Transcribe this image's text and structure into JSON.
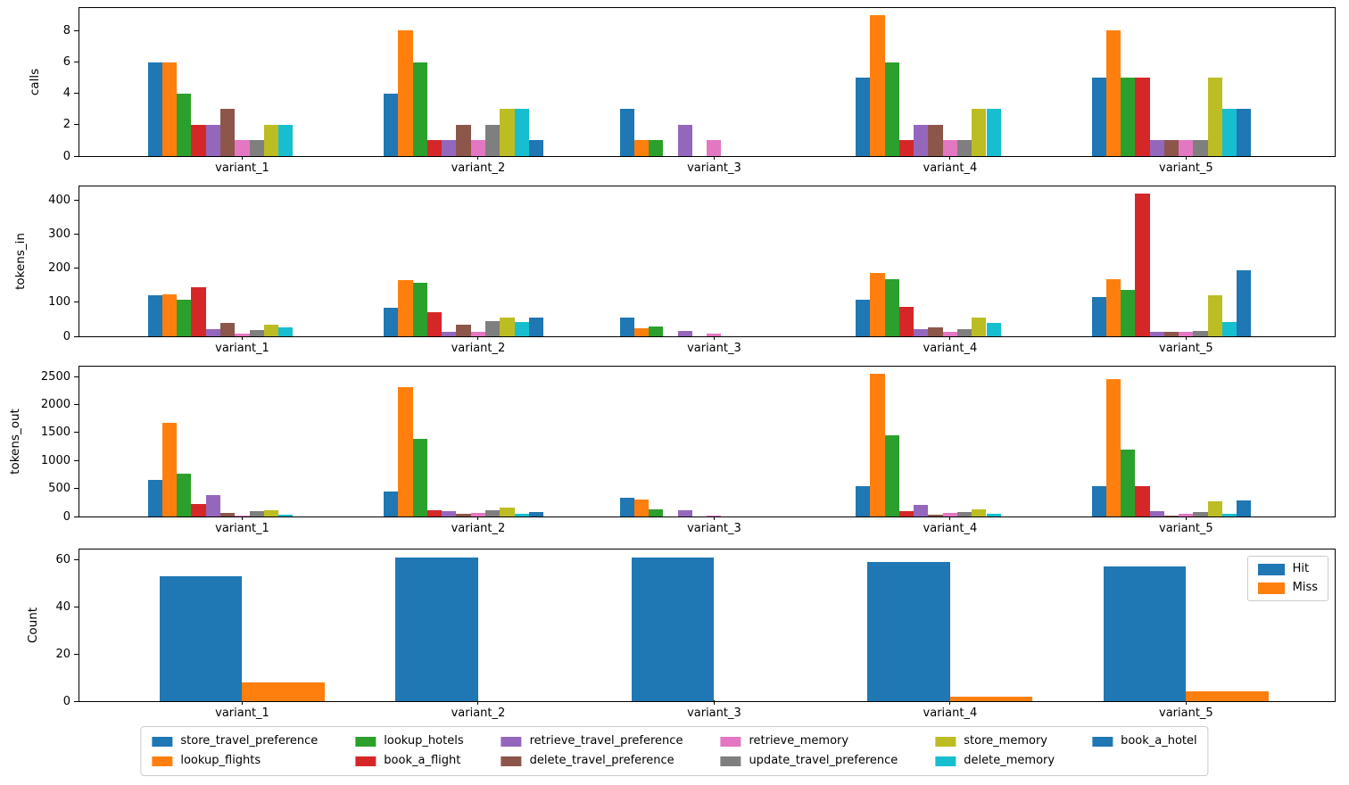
{
  "figure": {
    "background": "#ffffff"
  },
  "categories": [
    "variant_1",
    "variant_2",
    "variant_3",
    "variant_4",
    "variant_5"
  ],
  "palette": {
    "blue": "#1f77b4",
    "orange": "#ff7f0e",
    "green": "#2ca02c",
    "red": "#d62728",
    "purple": "#9467bd",
    "brown": "#8c564b",
    "pink": "#e377c2",
    "gray": "#7f7f7f",
    "olive": "#bcbd22",
    "cyan": "#17becf"
  },
  "chart_data": [
    {
      "id": "calls",
      "type": "bar",
      "ylabel": "calls",
      "yticks": [
        0,
        2,
        4,
        6,
        8
      ],
      "ymax": 9.45,
      "xlim": [
        -0.69,
        4.63
      ],
      "group_offset": -0.4,
      "bar_w": 0.0615,
      "grid": false,
      "categories": [
        "variant_1",
        "variant_2",
        "variant_3",
        "variant_4",
        "variant_5"
      ],
      "series": [
        {
          "name": "store_travel_preference",
          "color": "#1f77b4",
          "values": [
            6,
            4,
            3,
            5,
            5
          ]
        },
        {
          "name": "lookup_flights",
          "color": "#ff7f0e",
          "values": [
            6,
            8,
            1,
            9,
            8
          ]
        },
        {
          "name": "lookup_hotels",
          "color": "#2ca02c",
          "values": [
            4,
            6,
            1,
            6,
            5
          ]
        },
        {
          "name": "book_a_flight",
          "color": "#d62728",
          "values": [
            2,
            1,
            0,
            1,
            5
          ]
        },
        {
          "name": "retrieve_travel_preference",
          "color": "#9467bd",
          "values": [
            2,
            1,
            2,
            2,
            1
          ]
        },
        {
          "name": "delete_travel_preference",
          "color": "#8c564b",
          "values": [
            3,
            2,
            0,
            2,
            1
          ]
        },
        {
          "name": "retrieve_memory",
          "color": "#e377c2",
          "values": [
            1,
            1,
            1,
            1,
            1
          ]
        },
        {
          "name": "update_travel_preference",
          "color": "#7f7f7f",
          "values": [
            1,
            2,
            0,
            1,
            1
          ]
        },
        {
          "name": "store_memory",
          "color": "#bcbd22",
          "values": [
            2,
            3,
            0,
            3,
            5
          ]
        },
        {
          "name": "delete_memory",
          "color": "#17becf",
          "values": [
            2,
            3,
            0,
            3,
            3
          ]
        },
        {
          "name": "book_a_hotel",
          "color": "#1f77b4",
          "values": [
            0,
            1,
            0,
            0,
            3
          ]
        }
      ]
    },
    {
      "id": "tokens_in",
      "type": "bar",
      "ylabel": "tokens_in",
      "yticks": [
        0,
        100,
        200,
        300,
        400
      ],
      "ymax": 442,
      "xlim": [
        -0.69,
        4.63
      ],
      "group_offset": -0.4,
      "bar_w": 0.0615,
      "grid": false,
      "categories": [
        "variant_1",
        "variant_2",
        "variant_3",
        "variant_4",
        "variant_5"
      ],
      "series": [
        {
          "name": "store_travel_preference",
          "color": "#1f77b4",
          "values": [
            120,
            85,
            55,
            107,
            115
          ]
        },
        {
          "name": "lookup_flights",
          "color": "#ff7f0e",
          "values": [
            125,
            165,
            23,
            188,
            168
          ]
        },
        {
          "name": "lookup_hotels",
          "color": "#2ca02c",
          "values": [
            107,
            157,
            28,
            168,
            138
          ]
        },
        {
          "name": "book_a_flight",
          "color": "#d62728",
          "values": [
            145,
            70,
            0,
            88,
            420
          ]
        },
        {
          "name": "retrieve_travel_preference",
          "color": "#9467bd",
          "values": [
            20,
            13,
            15,
            20,
            13
          ]
        },
        {
          "name": "delete_travel_preference",
          "color": "#8c564b",
          "values": [
            40,
            33,
            0,
            27,
            12
          ]
        },
        {
          "name": "retrieve_memory",
          "color": "#e377c2",
          "values": [
            8,
            14,
            7,
            13,
            14
          ]
        },
        {
          "name": "update_travel_preference",
          "color": "#7f7f7f",
          "values": [
            18,
            45,
            0,
            22,
            17
          ]
        },
        {
          "name": "store_memory",
          "color": "#bcbd22",
          "values": [
            35,
            55,
            0,
            55,
            120
          ]
        },
        {
          "name": "delete_memory",
          "color": "#17becf",
          "values": [
            27,
            42,
            0,
            40,
            43
          ]
        },
        {
          "name": "book_a_hotel",
          "color": "#1f77b4",
          "values": [
            0,
            55,
            0,
            0,
            195
          ]
        }
      ]
    },
    {
      "id": "tokens_out",
      "type": "bar",
      "ylabel": "tokens_out",
      "yticks": [
        0,
        500,
        1000,
        1500,
        2000,
        2500
      ],
      "ymax": 2680,
      "xlim": [
        -0.69,
        4.63
      ],
      "group_offset": -0.4,
      "bar_w": 0.0615,
      "grid": false,
      "categories": [
        "variant_1",
        "variant_2",
        "variant_3",
        "variant_4",
        "variant_5"
      ],
      "series": [
        {
          "name": "store_travel_preference",
          "color": "#1f77b4",
          "values": [
            660,
            440,
            330,
            540,
            550
          ]
        },
        {
          "name": "lookup_flights",
          "color": "#ff7f0e",
          "values": [
            1680,
            2320,
            310,
            2550,
            2450
          ]
        },
        {
          "name": "lookup_hotels",
          "color": "#2ca02c",
          "values": [
            760,
            1390,
            120,
            1450,
            1200
          ]
        },
        {
          "name": "book_a_flight",
          "color": "#d62728",
          "values": [
            225,
            110,
            0,
            100,
            550
          ]
        },
        {
          "name": "retrieve_travel_preference",
          "color": "#9467bd",
          "values": [
            380,
            90,
            110,
            200,
            90
          ]
        },
        {
          "name": "delete_travel_preference",
          "color": "#8c564b",
          "values": [
            60,
            45,
            0,
            35,
            20
          ]
        },
        {
          "name": "retrieve_memory",
          "color": "#e377c2",
          "values": [
            15,
            60,
            15,
            65,
            55
          ]
        },
        {
          "name": "update_travel_preference",
          "color": "#7f7f7f",
          "values": [
            90,
            110,
            0,
            75,
            75
          ]
        },
        {
          "name": "store_memory",
          "color": "#bcbd22",
          "values": [
            110,
            160,
            0,
            120,
            270
          ]
        },
        {
          "name": "delete_memory",
          "color": "#17becf",
          "values": [
            40,
            50,
            0,
            50,
            55
          ]
        },
        {
          "name": "book_a_hotel",
          "color": "#1f77b4",
          "values": [
            0,
            80,
            0,
            0,
            290
          ]
        }
      ]
    },
    {
      "id": "count",
      "type": "bar",
      "ylabel": "Count",
      "yticks": [
        0,
        20,
        40,
        60
      ],
      "ymax": 64.3,
      "xlim": [
        -0.69,
        4.63
      ],
      "group_offset": -0.35,
      "bar_w": 0.35,
      "grid": false,
      "legend_position": "upper right",
      "categories": [
        "variant_1",
        "variant_2",
        "variant_3",
        "variant_4",
        "variant_5"
      ],
      "series": [
        {
          "name": "Hit",
          "color": "#1f77b4",
          "values": [
            53,
            61,
            61,
            59,
            57
          ]
        },
        {
          "name": "Miss",
          "color": "#ff7f0e",
          "values": [
            8,
            0,
            0,
            2,
            4
          ]
        }
      ]
    }
  ],
  "bottom_legend": {
    "columns": [
      [
        {
          "label": "store_travel_preference",
          "color": "#1f77b4"
        },
        {
          "label": "lookup_flights",
          "color": "#ff7f0e"
        }
      ],
      [
        {
          "label": "lookup_hotels",
          "color": "#2ca02c"
        },
        {
          "label": "book_a_flight",
          "color": "#d62728"
        }
      ],
      [
        {
          "label": "retrieve_travel_preference",
          "color": "#9467bd"
        },
        {
          "label": "delete_travel_preference",
          "color": "#8c564b"
        }
      ],
      [
        {
          "label": "retrieve_memory",
          "color": "#e377c2"
        },
        {
          "label": "update_travel_preference",
          "color": "#7f7f7f"
        }
      ],
      [
        {
          "label": "store_memory",
          "color": "#bcbd22"
        },
        {
          "label": "delete_memory",
          "color": "#17becf"
        }
      ],
      [
        {
          "label": "book_a_hotel",
          "color": "#1f77b4"
        }
      ]
    ]
  },
  "count_legend": {
    "items": [
      {
        "label": "Hit",
        "color": "#1f77b4"
      },
      {
        "label": "Miss",
        "color": "#ff7f0e"
      }
    ]
  }
}
